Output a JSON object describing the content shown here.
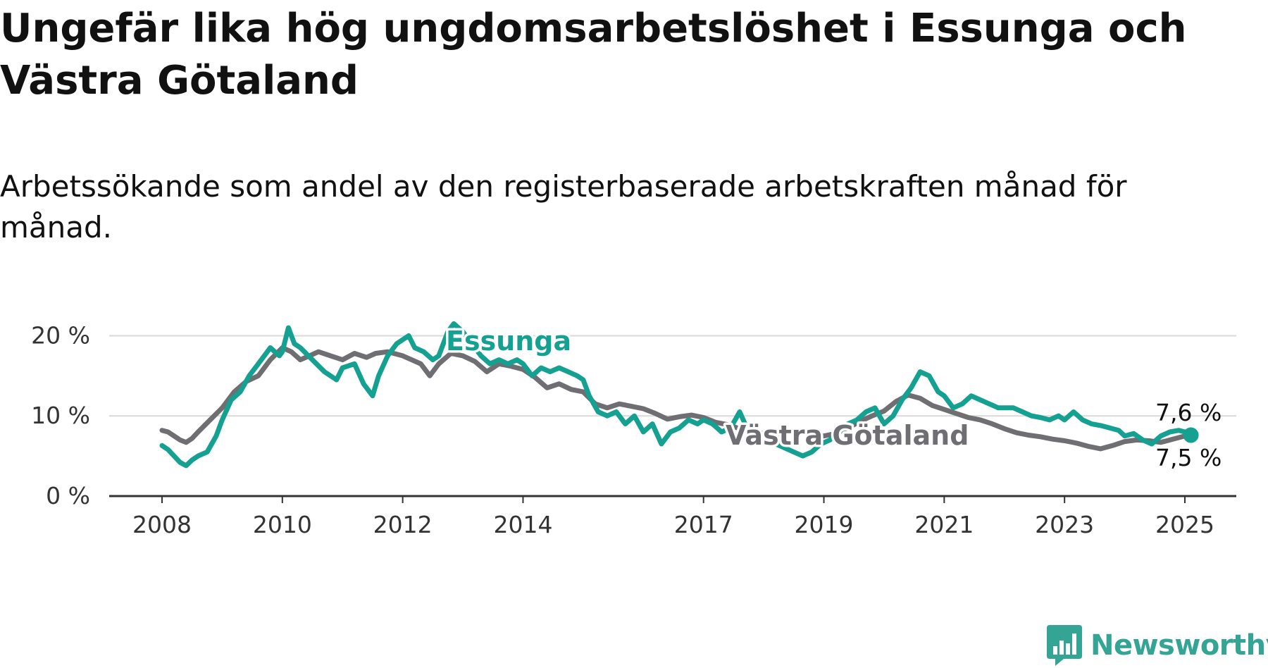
{
  "title": "Ungefär lika hög ungdomsarbetslöshet i Essunga och Västra Götaland",
  "subtitle": "Arbetssökande som andel av den registerbaserade arbetskraften månad för månad.",
  "brand": {
    "name": "Newsworthy",
    "color": "#34a594",
    "icon": "chat-bar-chart-icon"
  },
  "chart_data": {
    "type": "line",
    "title": "Ungefär lika hög ungdomsarbetslöshet i Essunga och Västra Götaland",
    "subtitle": "Arbetssökande som andel av den registerbaserade arbetskraften månad för månad.",
    "xlabel": "",
    "ylabel": "",
    "xlim": [
      2007.3,
      2026.0
    ],
    "ylim": [
      0,
      22.5
    ],
    "y_ticks": [
      {
        "value": 0,
        "label": "0 %"
      },
      {
        "value": 10,
        "label": "10 %"
      },
      {
        "value": 20,
        "label": "20 %"
      }
    ],
    "x_ticks": [
      {
        "value": 2008,
        "label": "2008"
      },
      {
        "value": 2010,
        "label": "2010"
      },
      {
        "value": 2012,
        "label": "2012"
      },
      {
        "value": 2014,
        "label": "2014"
      },
      {
        "value": 2017,
        "label": "2017"
      },
      {
        "value": 2019,
        "label": "2019"
      },
      {
        "value": 2021,
        "label": "2021"
      },
      {
        "value": 2023,
        "label": "2023"
      },
      {
        "value": 2025,
        "label": "2025"
      }
    ],
    "grid": true,
    "legend": "direct labels on lines",
    "series": [
      {
        "name": "Västra Götaland",
        "color": "#6e6e73",
        "x": [
          2008.0,
          2008.1,
          2008.2,
          2008.3,
          2008.4,
          2008.5,
          2008.6,
          2008.8,
          2009.0,
          2009.2,
          2009.4,
          2009.6,
          2009.8,
          2010.0,
          2010.15,
          2010.3,
          2010.45,
          2010.6,
          2010.8,
          2011.0,
          2011.2,
          2011.4,
          2011.55,
          2011.75,
          2012.0,
          2012.3,
          2012.45,
          2012.6,
          2012.8,
          2013.0,
          2013.2,
          2013.4,
          2013.6,
          2013.8,
          2014.0,
          2014.2,
          2014.4,
          2014.6,
          2014.8,
          2015.0,
          2015.2,
          2015.4,
          2015.6,
          2015.8,
          2016.0,
          2016.2,
          2016.4,
          2016.6,
          2016.8,
          2017.0,
          2017.2,
          2017.4,
          2017.6,
          2017.8,
          2018.0,
          2018.2,
          2018.4,
          2018.6,
          2018.8,
          2019.0,
          2019.2,
          2019.4,
          2019.6,
          2019.8,
          2020.0,
          2020.2,
          2020.4,
          2020.6,
          2020.8,
          2021.0,
          2021.2,
          2021.4,
          2021.6,
          2021.8,
          2022.0,
          2022.2,
          2022.4,
          2022.6,
          2022.8,
          2023.0,
          2023.2,
          2023.4,
          2023.6,
          2023.8,
          2024.0,
          2024.2,
          2024.4,
          2024.6,
          2024.8,
          2025.0,
          2025.1
        ],
        "values": [
          8.2,
          8.0,
          7.5,
          7.0,
          6.7,
          7.2,
          8.0,
          9.5,
          11.0,
          13.0,
          14.3,
          15.0,
          17.0,
          18.5,
          18.0,
          17.0,
          17.5,
          18.0,
          17.5,
          17.0,
          17.8,
          17.3,
          17.8,
          18.0,
          17.5,
          16.5,
          15.0,
          16.5,
          17.8,
          17.5,
          16.8,
          15.5,
          16.5,
          16.2,
          15.8,
          14.8,
          13.5,
          14.0,
          13.3,
          13.0,
          11.5,
          11.0,
          11.5,
          11.2,
          10.9,
          10.3,
          9.6,
          9.9,
          10.1,
          9.8,
          9.2,
          8.9,
          8.4,
          8.1,
          7.8,
          7.7,
          7.9,
          8.0,
          7.6,
          7.5,
          7.8,
          8.5,
          9.3,
          10.0,
          10.6,
          11.8,
          12.6,
          12.2,
          11.3,
          10.8,
          10.3,
          9.8,
          9.5,
          9.0,
          8.4,
          7.9,
          7.6,
          7.4,
          7.1,
          6.9,
          6.6,
          6.2,
          5.9,
          6.3,
          6.8,
          7.0,
          6.9,
          6.7,
          7.1,
          7.5,
          7.5
        ]
      },
      {
        "name": "Essunga",
        "color": "#15a191",
        "x": [
          2008.0,
          2008.1,
          2008.2,
          2008.3,
          2008.4,
          2008.5,
          2008.6,
          2008.75,
          2008.9,
          2009.0,
          2009.15,
          2009.3,
          2009.45,
          2009.6,
          2009.8,
          2009.95,
          2010.0,
          2010.1,
          2010.2,
          2010.3,
          2010.5,
          2010.7,
          2010.9,
          2011.0,
          2011.2,
          2011.35,
          2011.5,
          2011.6,
          2011.75,
          2011.9,
          2012.0,
          2012.1,
          2012.2,
          2012.35,
          2012.5,
          2012.6,
          2012.75,
          2012.85,
          2013.0,
          2013.15,
          2013.3,
          2013.45,
          2013.6,
          2013.75,
          2013.9,
          2014.0,
          2014.15,
          2014.3,
          2014.45,
          2014.6,
          2014.75,
          2014.9,
          2015.0,
          2015.1,
          2015.25,
          2015.4,
          2015.55,
          2015.7,
          2015.85,
          2016.0,
          2016.15,
          2016.3,
          2016.45,
          2016.6,
          2016.75,
          2016.9,
          2017.0,
          2017.15,
          2017.3,
          2017.45,
          2017.6,
          2017.75,
          2017.9,
          2018.05,
          2018.2,
          2018.35,
          2018.5,
          2018.65,
          2018.8,
          2018.95,
          2019.1,
          2019.25,
          2019.4,
          2019.55,
          2019.7,
          2019.85,
          2020.0,
          2020.15,
          2020.3,
          2020.45,
          2020.6,
          2020.75,
          2020.9,
          2021.0,
          2021.15,
          2021.3,
          2021.45,
          2021.6,
          2021.75,
          2021.9,
          2022.0,
          2022.15,
          2022.3,
          2022.45,
          2022.6,
          2022.75,
          2022.9,
          2023.0,
          2023.15,
          2023.3,
          2023.45,
          2023.6,
          2023.75,
          2023.9,
          2024.0,
          2024.15,
          2024.3,
          2024.45,
          2024.6,
          2024.75,
          2024.9,
          2025.0,
          2025.1
        ],
        "values": [
          6.3,
          5.8,
          5.0,
          4.2,
          3.8,
          4.5,
          5.0,
          5.5,
          7.5,
          9.5,
          12.0,
          13.0,
          15.0,
          16.5,
          18.5,
          17.5,
          18.0,
          21.0,
          19.0,
          18.5,
          17.0,
          15.5,
          14.5,
          16.0,
          16.5,
          14.0,
          12.5,
          15.0,
          17.5,
          19.0,
          19.5,
          20.0,
          18.5,
          18.0,
          17.0,
          17.5,
          20.5,
          21.5,
          20.5,
          19.0,
          17.5,
          16.5,
          17.0,
          16.5,
          17.0,
          16.5,
          15.0,
          16.0,
          15.5,
          16.0,
          15.5,
          15.0,
          14.5,
          12.5,
          10.5,
          10.0,
          10.5,
          9.0,
          10.0,
          8.0,
          9.0,
          6.5,
          8.0,
          8.5,
          9.5,
          9.0,
          9.5,
          9.0,
          8.0,
          8.5,
          10.5,
          8.0,
          7.5,
          7.0,
          6.5,
          6.0,
          5.5,
          5.0,
          5.5,
          6.5,
          7.0,
          8.0,
          9.0,
          9.5,
          10.5,
          11.0,
          9.0,
          10.0,
          12.0,
          13.5,
          15.5,
          15.0,
          13.0,
          12.5,
          11.0,
          11.5,
          12.5,
          12.0,
          11.5,
          11.0,
          11.0,
          11.0,
          10.5,
          10.0,
          9.8,
          9.5,
          10.0,
          9.5,
          10.5,
          9.5,
          9.0,
          8.8,
          8.5,
          8.2,
          7.5,
          7.8,
          7.0,
          6.5,
          7.5,
          8.0,
          8.2,
          8.0,
          7.6
        ]
      }
    ],
    "end_labels": [
      {
        "series": "Essunga",
        "value": 7.6,
        "label": "7,6 %"
      },
      {
        "series": "Västra Götaland",
        "value": 7.5,
        "label": "7,5 %"
      }
    ]
  }
}
